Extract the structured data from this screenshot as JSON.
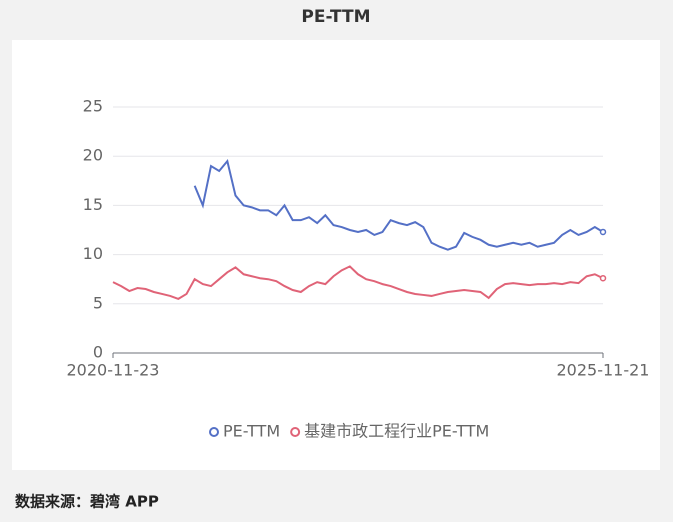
{
  "chart_data": {
    "type": "line",
    "title": "PE-TTM",
    "categories": [
      "2020-11-23",
      null,
      null,
      null,
      null,
      null,
      null,
      null,
      null,
      null,
      null,
      null,
      null,
      null,
      null,
      null,
      null,
      null,
      null,
      null,
      null,
      null,
      null,
      null,
      null,
      null,
      null,
      null,
      null,
      null,
      null,
      null,
      null,
      null,
      null,
      null,
      null,
      null,
      null,
      null,
      null,
      null,
      null,
      null,
      null,
      null,
      null,
      null,
      null,
      null,
      null,
      null,
      null,
      null,
      null,
      null,
      null,
      null,
      null,
      null,
      "2025-11-21"
    ],
    "series": [
      {
        "name": "PE-TTM",
        "color": "#5470c6",
        "values": [
          null,
          null,
          null,
          null,
          null,
          null,
          null,
          null,
          null,
          null,
          17,
          15,
          19,
          18.5,
          19.5,
          16,
          15,
          14.8,
          14.5,
          14.5,
          14,
          15,
          13.5,
          13.5,
          13.8,
          13.2,
          14,
          13,
          12.8,
          12.5,
          12.3,
          12.5,
          12,
          12.3,
          13.5,
          13.2,
          13,
          13.3,
          12.8,
          11.2,
          10.8,
          10.5,
          10.8,
          12.2,
          11.8,
          11.5,
          11,
          10.8,
          11,
          11.2,
          11,
          11.2,
          10.8,
          11,
          11.2,
          12,
          12.5,
          12,
          12.3,
          12.8,
          12.3
        ]
      },
      {
        "name": "基建市政工程行业PE-TTM",
        "color": "#e06377",
        "values": [
          7.2,
          6.8,
          6.3,
          6.6,
          6.5,
          6.2,
          6.0,
          5.8,
          5.5,
          6.0,
          7.5,
          7.0,
          6.8,
          7.5,
          8.2,
          8.7,
          8.0,
          7.8,
          7.6,
          7.5,
          7.3,
          6.8,
          6.4,
          6.2,
          6.8,
          7.2,
          7.0,
          7.8,
          8.4,
          8.8,
          8.0,
          7.5,
          7.3,
          7.0,
          6.8,
          6.5,
          6.2,
          6.0,
          5.9,
          5.8,
          6.0,
          6.2,
          6.3,
          6.4,
          6.3,
          6.2,
          5.6,
          6.5,
          7.0,
          7.1,
          7.0,
          6.9,
          7.0,
          7.0,
          7.1,
          7.0,
          7.2,
          7.1,
          7.8,
          8.0,
          7.6
        ]
      }
    ],
    "ylim": [
      0,
      25
    ],
    "yticks": [
      0,
      5,
      10,
      15,
      20,
      25
    ],
    "grid": true,
    "source": "数据来源：碧湾 APP"
  }
}
